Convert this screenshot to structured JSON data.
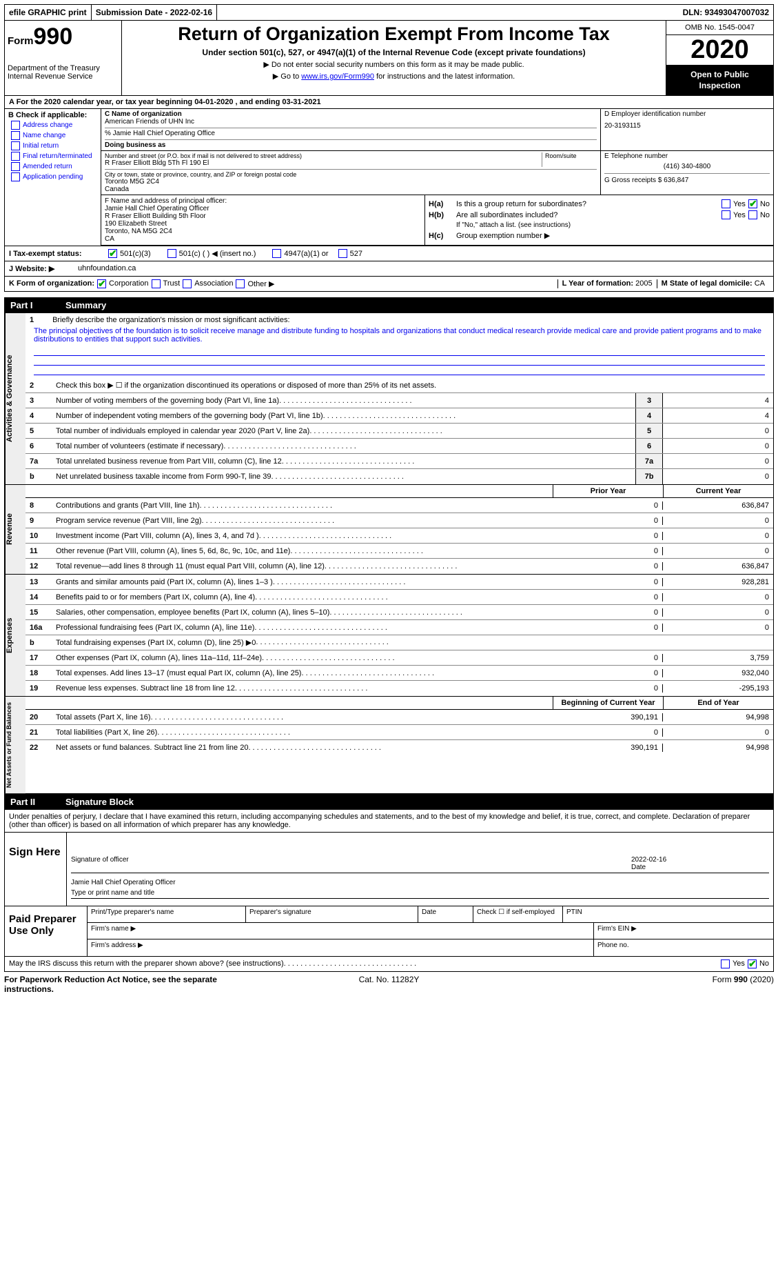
{
  "top_bar": {
    "efile": "efile GRAPHIC print",
    "submission": "Submission Date - 2022-02-16",
    "dln": "DLN: 93493047007032"
  },
  "header": {
    "form_label": "Form",
    "form_num": "990",
    "dept": "Department of the Treasury\nInternal Revenue Service",
    "title": "Return of Organization Exempt From Income Tax",
    "subtitle": "Under section 501(c), 527, or 4947(a)(1) of the Internal Revenue Code (except private foundations)",
    "note1": "▶ Do not enter social security numbers on this form as it may be made public.",
    "note2_pre": "▶ Go to ",
    "note2_link": "www.irs.gov/Form990",
    "note2_post": " for instructions and the latest information.",
    "omb": "OMB No. 1545-0047",
    "year": "2020",
    "inspect": "Open to Public Inspection"
  },
  "period": {
    "text": "A For the 2020 calendar year, or tax year beginning 04-01-2020  , and ending 03-31-2021"
  },
  "box_b": {
    "hdr": "B Check if applicable:",
    "opts": [
      "Address change",
      "Name change",
      "Initial return",
      "Final return/terminated",
      "Amended return",
      "Application pending"
    ]
  },
  "box_c": {
    "lbl": "C Name of organization",
    "name": "American Friends of UHN Inc",
    "care": "% Jamie Hall Chief Operating Office",
    "dba_lbl": "Doing business as",
    "addr_lbl": "Number and street (or P.O. box if mail is not delivered to street address)",
    "addr": "R Fraser Elliott Bldg 5Th Fl 190 El",
    "room_lbl": "Room/suite",
    "city_lbl": "City or town, state or province, country, and ZIP or foreign postal code",
    "city": "Toronto  M5G 2C4\nCanada"
  },
  "box_d": {
    "lbl": "D Employer identification number",
    "val": "20-3193115"
  },
  "box_e": {
    "lbl": "E Telephone number",
    "val": "(416) 340-4800"
  },
  "box_f": {
    "lbl": "F Name and address of principal officer:",
    "lines": [
      "Jamie Hall Chief Operating Officer",
      "R Fraser Elliott Building 5th Floor",
      "190 Elizabeth Street",
      "Toronto, NA  M5G 2C4",
      "CA"
    ]
  },
  "box_g": {
    "lbl": "G Gross receipts $",
    "val": "636,847"
  },
  "box_h": {
    "a_lbl": "H(a)",
    "a_txt": "Is this a group return for subordinates?",
    "b_lbl": "H(b)",
    "b_txt": "Are all subordinates included?",
    "b_note": "If \"No,\" attach a list. (see instructions)",
    "c_lbl": "H(c)",
    "c_txt": "Group exemption number ▶",
    "yes": "Yes",
    "no": "No"
  },
  "row_i": {
    "lbl": "I    Tax-exempt status:",
    "o1": "501(c)(3)",
    "o2": "501(c) (  ) ◀ (insert no.)",
    "o3": "4947(a)(1) or",
    "o4": "527"
  },
  "row_j": {
    "lbl": "J  Website: ▶",
    "val": "uhnfoundation.ca"
  },
  "row_k": {
    "lbl": "K Form of organization:",
    "o1": "Corporation",
    "o2": "Trust",
    "o3": "Association",
    "o4": "Other ▶",
    "l_lbl": "L Year of formation:",
    "l_val": "2005",
    "m_lbl": "M State of legal domicile:",
    "m_val": "CA"
  },
  "part1": {
    "num": "Part I",
    "title": "Summary",
    "mission_lbl": "Briefly describe the organization's mission or most significant activities:",
    "mission": "The principal objectives of the foundation is to solicit receive manage and distribute funding to hospitals and organizations that conduct medical research provide medical care and provide patient programs and to make distributions to entities that support such activities.",
    "line2": "Check this box ▶ ☐ if the organization discontinued its operations or disposed of more than 25% of its net assets.",
    "tabs": {
      "gov": "Activities & Governance",
      "rev": "Revenue",
      "exp": "Expenses",
      "net": "Net Assets or Fund Balances"
    },
    "col_prior": "Prior Year",
    "col_curr": "Current Year",
    "col_beg": "Beginning of Current Year",
    "col_end": "End of Year",
    "gov_lines": [
      {
        "n": "3",
        "t": "Number of voting members of the governing body (Part VI, line 1a)",
        "b": "3",
        "v": "4"
      },
      {
        "n": "4",
        "t": "Number of independent voting members of the governing body (Part VI, line 1b)",
        "b": "4",
        "v": "4"
      },
      {
        "n": "5",
        "t": "Total number of individuals employed in calendar year 2020 (Part V, line 2a)",
        "b": "5",
        "v": "0"
      },
      {
        "n": "6",
        "t": "Total number of volunteers (estimate if necessary)",
        "b": "6",
        "v": "0"
      },
      {
        "n": "7a",
        "t": "Total unrelated business revenue from Part VIII, column (C), line 12",
        "b": "7a",
        "v": "0"
      },
      {
        "n": "b",
        "t": "Net unrelated business taxable income from Form 990-T, line 39",
        "b": "7b",
        "v": "0"
      }
    ],
    "rev_lines": [
      {
        "n": "8",
        "t": "Contributions and grants (Part VIII, line 1h)",
        "p": "0",
        "c": "636,847"
      },
      {
        "n": "9",
        "t": "Program service revenue (Part VIII, line 2g)",
        "p": "0",
        "c": "0"
      },
      {
        "n": "10",
        "t": "Investment income (Part VIII, column (A), lines 3, 4, and 7d )",
        "p": "0",
        "c": "0"
      },
      {
        "n": "11",
        "t": "Other revenue (Part VIII, column (A), lines 5, 6d, 8c, 9c, 10c, and 11e)",
        "p": "0",
        "c": "0"
      },
      {
        "n": "12",
        "t": "Total revenue—add lines 8 through 11 (must equal Part VIII, column (A), line 12)",
        "p": "0",
        "c": "636,847"
      }
    ],
    "exp_lines": [
      {
        "n": "13",
        "t": "Grants and similar amounts paid (Part IX, column (A), lines 1–3 )",
        "p": "0",
        "c": "928,281"
      },
      {
        "n": "14",
        "t": "Benefits paid to or for members (Part IX, column (A), line 4)",
        "p": "0",
        "c": "0"
      },
      {
        "n": "15",
        "t": "Salaries, other compensation, employee benefits (Part IX, column (A), lines 5–10)",
        "p": "0",
        "c": "0"
      },
      {
        "n": "16a",
        "t": "Professional fundraising fees (Part IX, column (A), line 11e)",
        "p": "0",
        "c": "0"
      },
      {
        "n": "b",
        "t": "Total fundraising expenses (Part IX, column (D), line 25) ▶0",
        "p": "",
        "c": "",
        "shade": true
      },
      {
        "n": "17",
        "t": "Other expenses (Part IX, column (A), lines 11a–11d, 11f–24e)",
        "p": "0",
        "c": "3,759"
      },
      {
        "n": "18",
        "t": "Total expenses. Add lines 13–17 (must equal Part IX, column (A), line 25)",
        "p": "0",
        "c": "932,040"
      },
      {
        "n": "19",
        "t": "Revenue less expenses. Subtract line 18 from line 12",
        "p": "0",
        "c": "-295,193"
      }
    ],
    "net_lines": [
      {
        "n": "20",
        "t": "Total assets (Part X, line 16)",
        "p": "390,191",
        "c": "94,998"
      },
      {
        "n": "21",
        "t": "Total liabilities (Part X, line 26)",
        "p": "0",
        "c": "0"
      },
      {
        "n": "22",
        "t": "Net assets or fund balances. Subtract line 21 from line 20",
        "p": "390,191",
        "c": "94,998"
      }
    ]
  },
  "part2": {
    "num": "Part II",
    "title": "Signature Block",
    "decl": "Under penalties of perjury, I declare that I have examined this return, including accompanying schedules and statements, and to the best of my knowledge and belief, it is true, correct, and complete. Declaration of preparer (other than officer) is based on all information of which preparer has any knowledge.",
    "sign_here": "Sign Here",
    "sig_officer": "Signature of officer",
    "sig_date": "Date",
    "sig_date_val": "2022-02-16",
    "sig_name": "Jamie Hall Chief Operating Officer",
    "sig_name_lbl": "Type or print name and title",
    "paid_lbl": "Paid Preparer Use Only",
    "p_name": "Print/Type preparer's name",
    "p_sig": "Preparer's signature",
    "p_date": "Date",
    "p_check": "Check ☐ if self-employed",
    "p_ptin": "PTIN",
    "p_firm": "Firm's name   ▶",
    "p_ein": "Firm's EIN ▶",
    "p_addr": "Firm's address ▶",
    "p_phone": "Phone no.",
    "discuss": "May the IRS discuss this return with the preparer shown above? (see instructions)"
  },
  "footer": {
    "l": "For Paperwork Reduction Act Notice, see the separate instructions.",
    "c": "Cat. No. 11282Y",
    "r": "Form 990 (2020)"
  }
}
